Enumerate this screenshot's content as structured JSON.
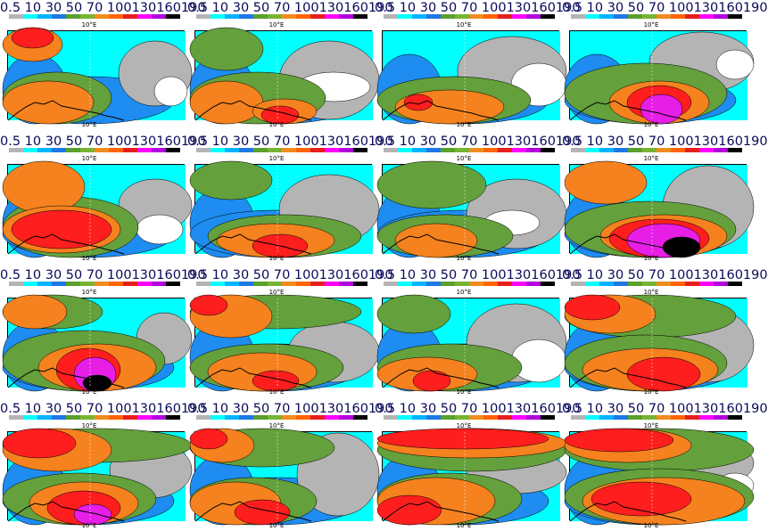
{
  "colorbar": {
    "labels": "0.5 10  30  50  70 100130160190",
    "colors": [
      "#b4b4b4",
      "#00ffff",
      "#00b4ff",
      "#1e78e6",
      "#5aa02d",
      "#78b432",
      "#f08c1e",
      "#ff6400",
      "#e61e1e",
      "#ff00ff",
      "#b400dc",
      "#000000"
    ]
  },
  "fill_colors": {
    "gray": "#b4b4b4",
    "cyan": "#00ffff",
    "blue": "#1e8cf0",
    "green": "#64a03c",
    "orange": "#f5821e",
    "red": "#ff1e1e",
    "magenta": "#e61ee6",
    "black": "#000000",
    "white": "#ffffff"
  },
  "lon_label": "10°E",
  "panels": [
    {
      "lon_label": "10°E"
    },
    {
      "lon_label": "10°E"
    },
    {
      "lon_label": "10°E"
    },
    {
      "lon_label": "10°E"
    },
    {
      "lon_label": "10°E"
    },
    {
      "lon_label": "10°E"
    },
    {
      "lon_label": "10°E"
    },
    {
      "lon_label": "10°E"
    },
    {
      "lon_label": "10°E"
    },
    {
      "lon_label": "10°E"
    },
    {
      "lon_label": "10°E"
    },
    {
      "lon_label": "10°E"
    },
    {
      "lon_label": "10°E"
    },
    {
      "lon_label": "10°E"
    },
    {
      "lon_label": "10°E"
    },
    {
      "lon_label": "10°E"
    }
  ]
}
